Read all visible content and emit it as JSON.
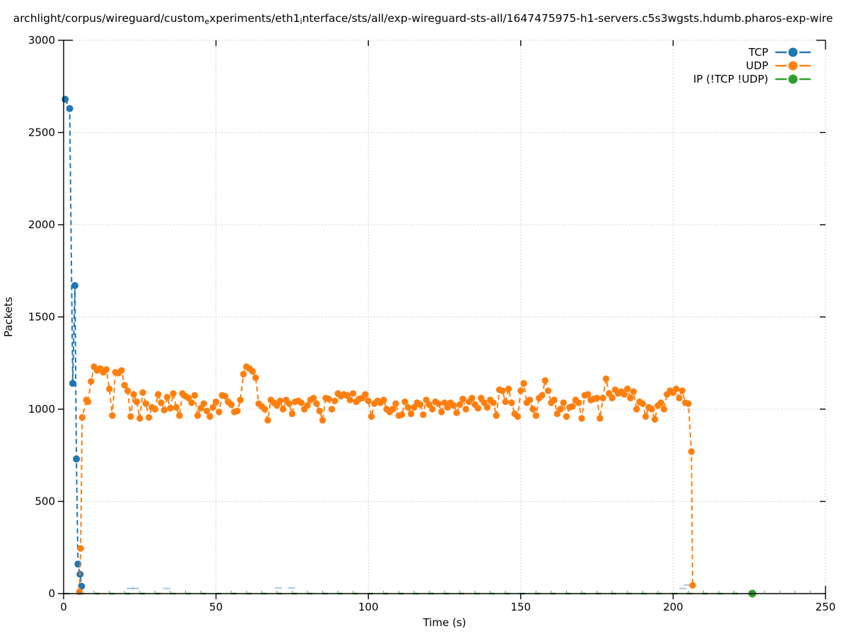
{
  "title": {
    "part1": "archlight/corpus/wireguard/custom",
    "sub1": "e",
    "part2": "xperiments/eth1",
    "sub2": "i",
    "part3": "nterface/sts/all/exp-wireguard-sts-all/1647475975-h1-servers.c5s3wgsts.hdumb.pharos-exp-wire"
  },
  "chart_data": {
    "type": "line",
    "title": "archlight/corpus/wireguard/custom_experiments/eth1_interface/sts/all/exp-wireguard-sts-all/1647475975-h1-servers.c5s3wgsts.hdumb.pharos-exp-wire",
    "xlabel": "Time (s)",
    "ylabel": "Packets",
    "xlim": [
      0,
      250
    ],
    "ylim": [
      0,
      3000
    ],
    "xticks": [
      0,
      50,
      100,
      150,
      200,
      250
    ],
    "yticks": [
      0,
      500,
      1000,
      1500,
      2000,
      2500,
      3000
    ],
    "x_minor_step": 5,
    "grid": true,
    "grid_style": "dotted",
    "legend_position": "top-right-inside",
    "marker": "filled-circle",
    "line_style": "dashed",
    "series": [
      {
        "name": "TCP",
        "color": "#1f77b4",
        "points": [
          [
            0.5,
            2680
          ],
          [
            2,
            2630
          ],
          [
            3,
            1140
          ],
          [
            3.7,
            1670
          ],
          [
            4.2,
            730
          ],
          [
            4.7,
            160
          ],
          [
            5.4,
            105
          ],
          [
            5.9,
            40
          ]
        ],
        "sparse_low_points": [
          [
            21.8,
            28
          ],
          [
            23.6,
            28
          ],
          [
            33.8,
            28
          ],
          [
            70.5,
            30
          ],
          [
            74.8,
            30
          ],
          [
            203.2,
            28
          ],
          [
            204.7,
            46
          ]
        ]
      },
      {
        "name": "UDP",
        "color": "#ff7f0e",
        "points": [
          [
            5.2,
            10
          ],
          [
            5.6,
            245
          ],
          [
            6.1,
            955
          ],
          [
            7.5,
            1050
          ],
          [
            8,
            1040
          ],
          [
            9,
            1150
          ],
          [
            10,
            1230
          ],
          [
            11,
            1210
          ],
          [
            12,
            1220
          ],
          [
            13,
            1200
          ],
          [
            14,
            1215
          ],
          [
            15,
            1110
          ],
          [
            16,
            965
          ],
          [
            17,
            1200
          ],
          [
            18,
            1195
          ],
          [
            19,
            1210
          ],
          [
            20,
            1130
          ],
          [
            21,
            1100
          ],
          [
            22,
            960
          ],
          [
            23,
            1080
          ],
          [
            24,
            1040
          ],
          [
            25,
            950
          ],
          [
            26,
            1090
          ],
          [
            27,
            1030
          ],
          [
            28,
            955
          ],
          [
            29,
            1010
          ],
          [
            30,
            1000
          ],
          [
            31,
            1080
          ],
          [
            32,
            1035
          ],
          [
            33,
            995
          ],
          [
            34,
            1065
          ],
          [
            35,
            1005
          ],
          [
            36,
            1085
          ],
          [
            37,
            1010
          ],
          [
            38,
            965
          ],
          [
            39,
            1085
          ],
          [
            40,
            1070
          ],
          [
            41,
            1060
          ],
          [
            42,
            1035
          ],
          [
            43,
            1075
          ],
          [
            44,
            965
          ],
          [
            45,
            1005
          ],
          [
            46,
            1030
          ],
          [
            47,
            990
          ],
          [
            48,
            960
          ],
          [
            49,
            1010
          ],
          [
            50,
            1040
          ],
          [
            51,
            985
          ],
          [
            52,
            1075
          ],
          [
            53,
            1070
          ],
          [
            54,
            1040
          ],
          [
            55,
            1025
          ],
          [
            56,
            985
          ],
          [
            57,
            990
          ],
          [
            58,
            1050
          ],
          [
            59,
            1190
          ],
          [
            60,
            1230
          ],
          [
            61,
            1220
          ],
          [
            62,
            1205
          ],
          [
            63,
            1170
          ],
          [
            64,
            1030
          ],
          [
            65,
            1015
          ],
          [
            66,
            1000
          ],
          [
            67,
            940
          ],
          [
            68,
            1050
          ],
          [
            69,
            1035
          ],
          [
            70,
            1020
          ],
          [
            71,
            1045
          ],
          [
            72,
            1000
          ],
          [
            73,
            1050
          ],
          [
            74,
            1030
          ],
          [
            75,
            975
          ],
          [
            76,
            1040
          ],
          [
            77,
            1045
          ],
          [
            78,
            1035
          ],
          [
            79,
            1000
          ],
          [
            80,
            1020
          ],
          [
            81,
            1050
          ],
          [
            82,
            1060
          ],
          [
            83,
            1030
          ],
          [
            84,
            990
          ],
          [
            85,
            940
          ],
          [
            86,
            1060
          ],
          [
            87,
            1055
          ],
          [
            88,
            1000
          ],
          [
            89,
            1045
          ],
          [
            90,
            1085
          ],
          [
            91,
            1070
          ],
          [
            92,
            1080
          ],
          [
            93,
            1075
          ],
          [
            94,
            1050
          ],
          [
            95,
            1085
          ],
          [
            96,
            1040
          ],
          [
            97,
            1055
          ],
          [
            98,
            1060
          ],
          [
            99,
            1080
          ],
          [
            100,
            1045
          ],
          [
            101,
            960
          ],
          [
            102,
            1030
          ],
          [
            103,
            1045
          ],
          [
            104,
            1035
          ],
          [
            105,
            1050
          ],
          [
            106,
            1000
          ],
          [
            107,
            985
          ],
          [
            108,
            1000
          ],
          [
            109,
            1030
          ],
          [
            110,
            965
          ],
          [
            111,
            970
          ],
          [
            112,
            1040
          ],
          [
            113,
            1010
          ],
          [
            114,
            975
          ],
          [
            115,
            1010
          ],
          [
            116,
            1035
          ],
          [
            117,
            1025
          ],
          [
            118,
            970
          ],
          [
            119,
            1050
          ],
          [
            120,
            1025
          ],
          [
            121,
            1000
          ],
          [
            122,
            1040
          ],
          [
            123,
            1030
          ],
          [
            124,
            985
          ],
          [
            125,
            1035
          ],
          [
            126,
            1010
          ],
          [
            127,
            1035
          ],
          [
            128,
            1020
          ],
          [
            129,
            980
          ],
          [
            130,
            1025
          ],
          [
            131,
            1055
          ],
          [
            132,
            1000
          ],
          [
            133,
            1040
          ],
          [
            134,
            1060
          ],
          [
            135,
            1025
          ],
          [
            136,
            1005
          ],
          [
            137,
            1060
          ],
          [
            138,
            1035
          ],
          [
            139,
            1010
          ],
          [
            140,
            1050
          ],
          [
            141,
            1035
          ],
          [
            142,
            965
          ],
          [
            143,
            1105
          ],
          [
            144,
            1100
          ],
          [
            145,
            1040
          ],
          [
            146,
            1110
          ],
          [
            147,
            1035
          ],
          [
            148,
            975
          ],
          [
            149,
            960
          ],
          [
            150,
            1100
          ],
          [
            151,
            1140
          ],
          [
            152,
            1035
          ],
          [
            153,
            1050
          ],
          [
            154,
            1000
          ],
          [
            155,
            965
          ],
          [
            156,
            1060
          ],
          [
            157,
            1075
          ],
          [
            158,
            1155
          ],
          [
            159,
            1100
          ],
          [
            160,
            1035
          ],
          [
            161,
            1050
          ],
          [
            162,
            975
          ],
          [
            163,
            1000
          ],
          [
            164,
            1035
          ],
          [
            165,
            960
          ],
          [
            166,
            1010
          ],
          [
            167,
            1015
          ],
          [
            168,
            1050
          ],
          [
            169,
            1035
          ],
          [
            170,
            950
          ],
          [
            171,
            1075
          ],
          [
            172,
            1080
          ],
          [
            173,
            1050
          ],
          [
            174,
            1055
          ],
          [
            175,
            1060
          ],
          [
            176,
            950
          ],
          [
            177,
            1060
          ],
          [
            178,
            1165
          ],
          [
            179,
            1085
          ],
          [
            180,
            1060
          ],
          [
            181,
            1105
          ],
          [
            182,
            1085
          ],
          [
            183,
            1095
          ],
          [
            184,
            1080
          ],
          [
            185,
            1110
          ],
          [
            186,
            1060
          ],
          [
            187,
            1095
          ],
          [
            188,
            1000
          ],
          [
            189,
            1040
          ],
          [
            190,
            1030
          ],
          [
            191,
            960
          ],
          [
            192,
            1010
          ],
          [
            193,
            1000
          ],
          [
            194,
            945
          ],
          [
            195,
            1020
          ],
          [
            196,
            1035
          ],
          [
            197,
            1000
          ],
          [
            198,
            1080
          ],
          [
            199,
            1100
          ],
          [
            200,
            1090
          ],
          [
            201,
            1110
          ],
          [
            202,
            1060
          ],
          [
            203,
            1100
          ],
          [
            204,
            1035
          ],
          [
            205,
            1030
          ],
          [
            206,
            770
          ],
          [
            206.4,
            45
          ]
        ]
      },
      {
        "name": "IP (!TCP  !UDP)",
        "color": "#2ca02c",
        "points": [
          [
            0,
            0
          ],
          [
            226,
            0
          ]
        ],
        "marker_points": [
          [
            226,
            0
          ]
        ]
      }
    ]
  },
  "colors": {
    "grid": "#c4c4c4",
    "axis": "#000000",
    "minor_tick": "#6a7a6a"
  }
}
